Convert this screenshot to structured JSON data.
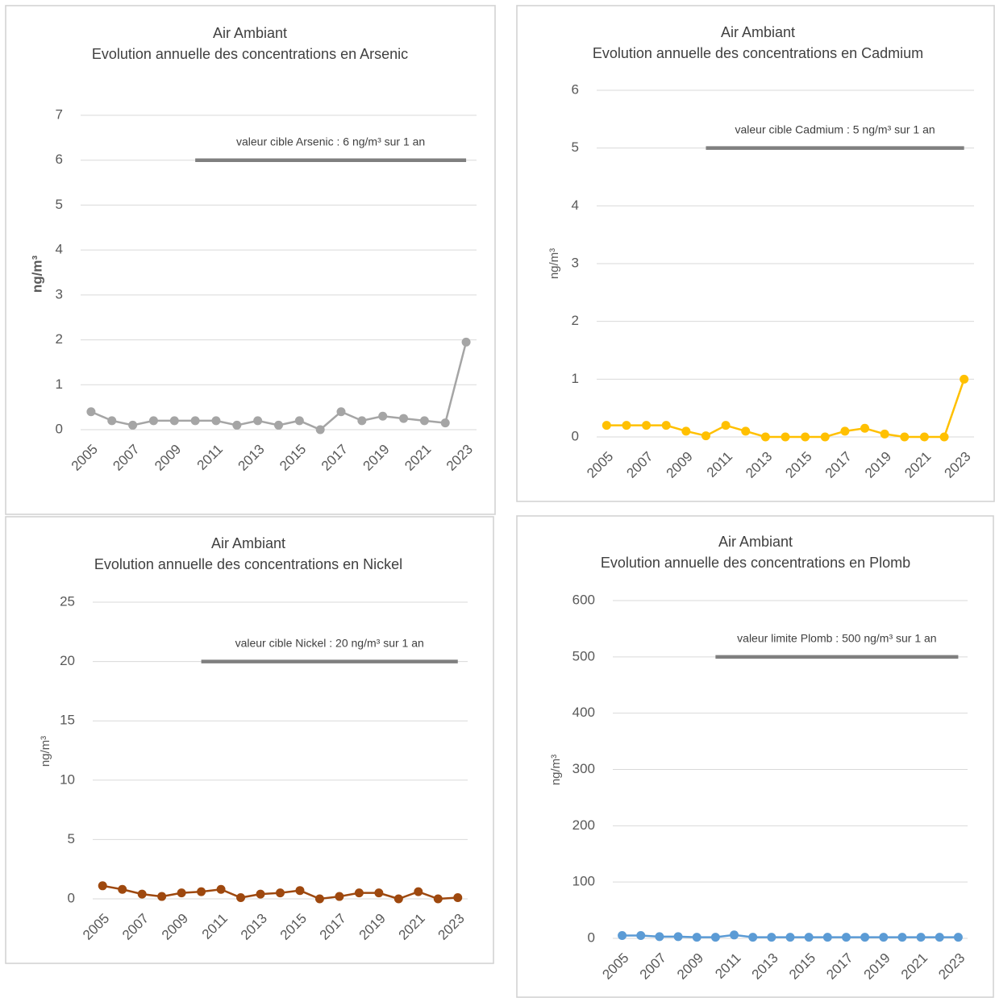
{
  "chart_data": [
    {
      "type": "line",
      "title": "Air Ambiant",
      "subtitle": "Evolution annuelle des concentrations en Arsenic",
      "y_label": "ng/m³",
      "categories": [
        "2005",
        null,
        "2007",
        null,
        "2009",
        null,
        "2011",
        null,
        "2013",
        null,
        "2015",
        null,
        "2017",
        null,
        "2019",
        null,
        "2021",
        null,
        "2023"
      ],
      "ylim": [
        0,
        7
      ],
      "yticks": [
        0,
        1,
        2,
        3,
        4,
        5,
        6,
        7
      ],
      "grid": true,
      "series": [
        {
          "color": "#a5a5a5",
          "marker": "circle",
          "values": [
            0.4,
            0.2,
            0.1,
            0.2,
            0.2,
            0.2,
            0.2,
            0.1,
            0.2,
            0.1,
            0.2,
            0,
            0.4,
            0.2,
            0.3,
            0.25,
            0.2,
            0.15,
            1.95
          ]
        },
        {
          "name": "valeur cible Arsenic : 6 ng/m³ sur 1 an",
          "color": "#7f7f7f",
          "values": [
            null,
            null,
            null,
            null,
            null,
            6,
            6,
            6,
            6,
            6,
            6,
            6,
            6,
            6,
            6,
            6,
            6,
            6,
            6
          ]
        }
      ]
    },
    {
      "type": "line",
      "title": "Air Ambiant",
      "subtitle": "Evolution annuelle des concentrations en Cadmium",
      "y_label": "ng/m³",
      "categories": [
        "2005",
        null,
        "2007",
        null,
        "2009",
        null,
        "2011",
        null,
        "2013",
        null,
        "2015",
        null,
        "2017",
        null,
        "2019",
        null,
        "2021",
        null,
        "2023"
      ],
      "ylim": [
        0,
        6
      ],
      "yticks": [
        0,
        1,
        2,
        3,
        4,
        5,
        6
      ],
      "grid": true,
      "series": [
        {
          "color": "#ffc000",
          "marker": "circle",
          "values": [
            0.2,
            0.2,
            0.2,
            0.2,
            0.1,
            0.02,
            0.2,
            0.1,
            0,
            0,
            0,
            0,
            0.1,
            0.15,
            0.05,
            0,
            0,
            0,
            1.0
          ]
        },
        {
          "name": "valeur cible Cadmium : 5 ng/m³ sur 1 an",
          "color": "#7f7f7f",
          "values": [
            null,
            null,
            null,
            null,
            null,
            5,
            5,
            5,
            5,
            5,
            5,
            5,
            5,
            5,
            5,
            5,
            5,
            5,
            5
          ]
        }
      ]
    },
    {
      "type": "line",
      "title": "Air Ambiant",
      "subtitle": "Evolution annuelle des concentrations en Nickel",
      "y_label": "ng/m³",
      "categories": [
        "2005",
        null,
        "2007",
        null,
        "2009",
        null,
        "2011",
        null,
        "2013",
        null,
        "2015",
        null,
        "2017",
        null,
        "2019",
        null,
        "2021",
        null,
        "2023"
      ],
      "ylim": [
        0,
        25
      ],
      "yticks": [
        0,
        5,
        10,
        15,
        20,
        25
      ],
      "grid": true,
      "series": [
        {
          "color": "#9e480e",
          "marker": "circle",
          "values": [
            1.1,
            0.8,
            0.4,
            0.2,
            0.5,
            0.6,
            0.8,
            0.1,
            0.4,
            0.5,
            0.7,
            0,
            0.2,
            0.5,
            0.5,
            0,
            0.6,
            0,
            0.1
          ]
        },
        {
          "name": "valeur cible Nickel : 20 ng/m³ sur 1 an",
          "color": "#7f7f7f",
          "values": [
            null,
            null,
            null,
            null,
            null,
            20,
            20,
            20,
            20,
            20,
            20,
            20,
            20,
            20,
            20,
            20,
            20,
            20,
            20
          ]
        }
      ]
    },
    {
      "type": "line",
      "title": "Air Ambiant",
      "subtitle": "Evolution annuelle des concentrations en Plomb",
      "y_label": "ng/m³",
      "categories": [
        "2005",
        null,
        "2007",
        null,
        "2009",
        null,
        "2011",
        null,
        "2013",
        null,
        "2015",
        null,
        "2017",
        null,
        "2019",
        null,
        "2021",
        null,
        "2023"
      ],
      "ylim": [
        0,
        600
      ],
      "yticks": [
        0,
        100,
        200,
        300,
        400,
        500,
        600
      ],
      "grid": true,
      "series": [
        {
          "color": "#5b9bd5",
          "marker": "circle",
          "values": [
            5,
            5,
            3,
            3,
            2,
            2,
            6,
            2,
            2,
            2,
            2,
            2,
            2,
            2,
            2,
            2,
            2,
            2,
            2
          ]
        },
        {
          "name": "valeur limite Plomb : 500 ng/m³ sur 1 an",
          "color": "#7f7f7f",
          "values": [
            null,
            null,
            null,
            null,
            null,
            500,
            500,
            500,
            500,
            500,
            500,
            500,
            500,
            500,
            500,
            500,
            500,
            500,
            500
          ]
        }
      ]
    }
  ]
}
